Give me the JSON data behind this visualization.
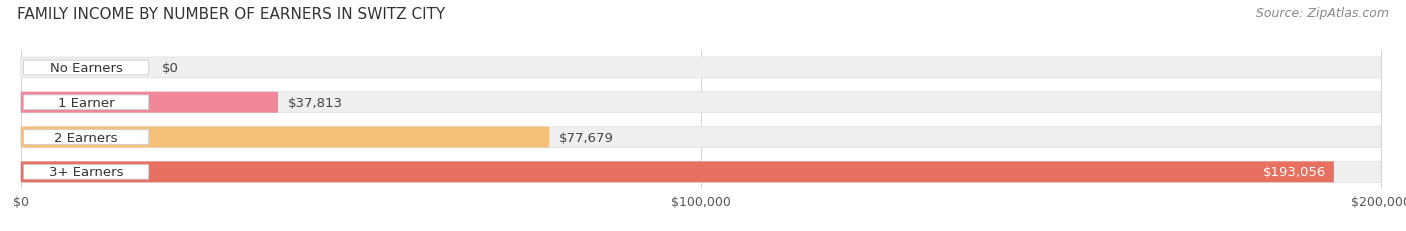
{
  "title": "FAMILY INCOME BY NUMBER OF EARNERS IN SWITZ CITY",
  "source": "Source: ZipAtlas.com",
  "categories": [
    "No Earners",
    "1 Earner",
    "2 Earners",
    "3+ Earners"
  ],
  "values": [
    0,
    37813,
    77679,
    193056
  ],
  "bar_colors": [
    "#a0a8d8",
    "#f0879b",
    "#f5c07a",
    "#e87060"
  ],
  "bar_bg_color": "#efefef",
  "label_colors": [
    "#333333",
    "#333333",
    "#333333",
    "#ffffff"
  ],
  "xlim": [
    0,
    200000
  ],
  "xticks": [
    0,
    100000,
    200000
  ],
  "xtick_labels": [
    "$0",
    "$100,000",
    "$200,000"
  ],
  "fig_bg_color": "#ffffff",
  "bar_bg_outline": "#dddddd",
  "title_fontsize": 11,
  "source_fontsize": 9,
  "tick_fontsize": 9,
  "label_fontsize": 9.5
}
